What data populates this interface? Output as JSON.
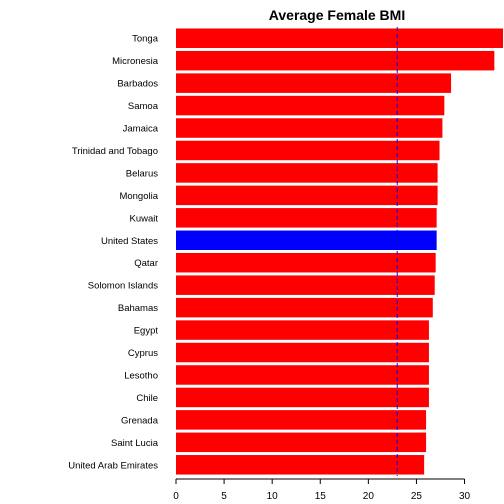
{
  "chart_data": {
    "type": "bar",
    "orientation": "horizontal",
    "title": "Average Female BMI",
    "xlabel": "",
    "ylabel": "",
    "xlim": [
      0,
      34
    ],
    "xticks": [
      0,
      5,
      10,
      15,
      20,
      25,
      30
    ],
    "grid": false,
    "legend": "none",
    "reference_line": {
      "value": 23.0,
      "style": "dashed",
      "color": "#0000ff"
    },
    "colors": {
      "default": "#ff0000",
      "highlight": "#0000ff"
    },
    "highlight_category": "United States",
    "categories": [
      "Tonga",
      "Micronesia",
      "Barbados",
      "Samoa",
      "Jamaica",
      "Trinidad and Tobago",
      "Belarus",
      "Mongolia",
      "Kuwait",
      "United States",
      "Qatar",
      "Solomon Islands",
      "Bahamas",
      "Egypt",
      "Cyprus",
      "Lesotho",
      "Chile",
      "Grenada",
      "Saint Lucia",
      "United Arab Emirates"
    ],
    "values": [
      34.0,
      33.1,
      28.6,
      27.9,
      27.7,
      27.4,
      27.2,
      27.2,
      27.1,
      27.1,
      27.0,
      26.9,
      26.7,
      26.3,
      26.3,
      26.3,
      26.3,
      26.0,
      26.0,
      25.8
    ]
  }
}
